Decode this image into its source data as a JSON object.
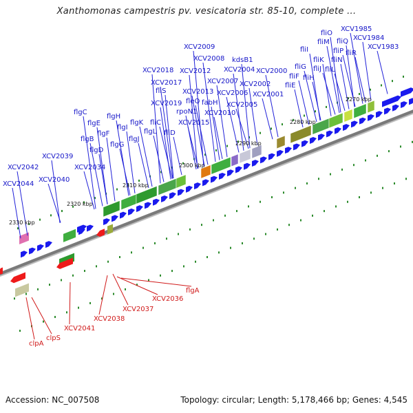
{
  "title": "Xanthomonas campestris pv. vesicatoria str. 85-10, complete ...",
  "footer": {
    "accession": "Accession: NC_007508",
    "summary": "Topology: circular; Length: 5,178,466 bp; Genes: 4,545"
  },
  "colors": {
    "forward_gene": "#1a1aee",
    "reverse_gene": "#ee1a1a",
    "backbone": "#8c8c8c",
    "tick": "#2a8a2a",
    "label_blue": "#1515c8",
    "label_red": "#d01818"
  },
  "kbp_ticks": [
    "2270 kbp",
    "2280 kbp",
    "2290 kbp",
    "2300 kbp",
    "2310 kbp",
    "2320 kbp",
    "2330 kbp"
  ],
  "forward_labels": [
    "XCV2044",
    "XCV2042",
    "XCV2040",
    "XCV2039",
    "XCV2034",
    "flgB",
    "flgD",
    "flgE",
    "flgC",
    "flgF",
    "flgG",
    "flgH",
    "flgI",
    "flgJ",
    "flgK",
    "fliD",
    "flgL",
    "fliC",
    "fliS",
    "XCV2019",
    "XCV2017",
    "XCV2018",
    "rpoN1",
    "XCV2013",
    "XCV2012",
    "XCV2015",
    "fleQ",
    "XCV2010",
    "XCV2009",
    "XCV2008",
    "fabH",
    "XCV2007",
    "XCV2006",
    "kdsB1",
    "XCV2004",
    "XCV2005",
    "XCV2002",
    "XCV2001",
    "XCV2000",
    "fliE",
    "fliF",
    "fliG",
    "fliH",
    "fliI",
    "fliJ",
    "fliK",
    "fliL",
    "fliM",
    "fliN",
    "fliO",
    "fliP",
    "fliQ",
    "fliR",
    "XCV1985",
    "XCV1984",
    "XCV1983"
  ],
  "reverse_labels": [
    "clpA",
    "clpS",
    "XCV2041",
    "XCV2038",
    "XCV2037",
    "XCV2036",
    "flgA"
  ]
}
